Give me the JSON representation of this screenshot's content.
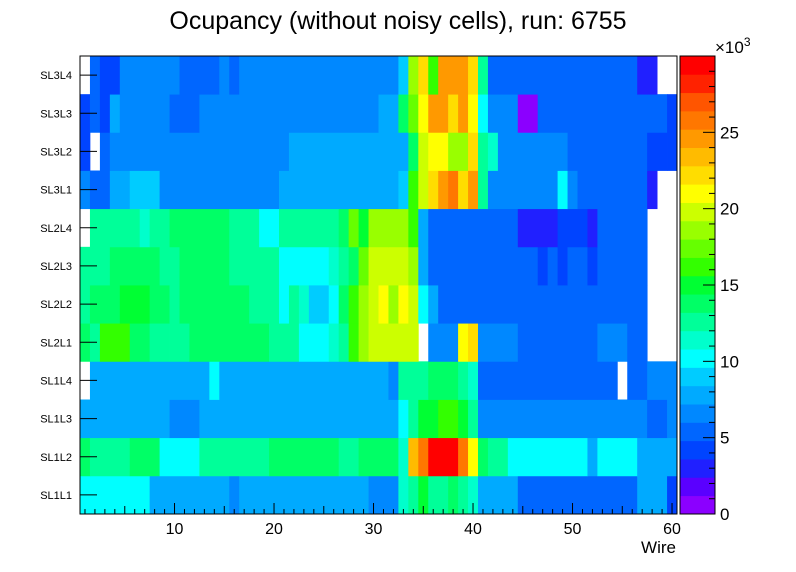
{
  "chart_data": {
    "type": "heatmap",
    "title": "Ocupancy (without noisy cells), run: 6755",
    "xlabel": "Wire",
    "ylabel": "",
    "xlim": [
      0.5,
      60.5
    ],
    "x_ticks": [
      10,
      20,
      30,
      40,
      50,
      60
    ],
    "y_categories": [
      "SL1L1",
      "SL1L2",
      "SL1L3",
      "SL1L4",
      "SL2L1",
      "SL2L2",
      "SL2L3",
      "SL2L4",
      "SL3L1",
      "SL3L2",
      "SL3L3",
      "SL3L4"
    ],
    "z_range": [
      0,
      30
    ],
    "z_exponent_label": "×10",
    "z_exponent": "3",
    "z_ticks": [
      0,
      5,
      10,
      15,
      20,
      25
    ],
    "palette": [
      "#8b00ff",
      "#5a00ff",
      "#2020ff",
      "#0044ff",
      "#0066ff",
      "#0088ff",
      "#00aaff",
      "#00ccff",
      "#00ffff",
      "#00ffcc",
      "#00ff99",
      "#00ff66",
      "#00ff33",
      "#33ff00",
      "#66ff00",
      "#99ff00",
      "#ccff00",
      "#ffff00",
      "#ffdd00",
      "#ffbb00",
      "#ff9900",
      "#ff7700",
      "#ff5500",
      "#ff2200",
      "#ff0000"
    ],
    "rows": {
      "SL1L1": [
        [
          1,
          7,
          10.5
        ],
        [
          8,
          15,
          8
        ],
        [
          16,
          16,
          7
        ],
        [
          17,
          29,
          8
        ],
        [
          30,
          32,
          7
        ],
        [
          33,
          33,
          11
        ],
        [
          34,
          34,
          13
        ],
        [
          35,
          35,
          15
        ],
        [
          36,
          37,
          13
        ],
        [
          38,
          38,
          14
        ],
        [
          39,
          39,
          13
        ],
        [
          40,
          40,
          11
        ],
        [
          41,
          44,
          7.5
        ],
        [
          45,
          56,
          5
        ],
        [
          57,
          59,
          8
        ],
        [
          60,
          60,
          4
        ]
      ],
      "SL1L2": [
        [
          1,
          1,
          14
        ],
        [
          2,
          5,
          12
        ],
        [
          6,
          8,
          14
        ],
        [
          9,
          12,
          10
        ],
        [
          13,
          19,
          12
        ],
        [
          20,
          26,
          14
        ],
        [
          27,
          28,
          12
        ],
        [
          29,
          32,
          13.5
        ],
        [
          33,
          33,
          11
        ],
        [
          34,
          34,
          23
        ],
        [
          35,
          35,
          26
        ],
        [
          36,
          38,
          29
        ],
        [
          39,
          39,
          26
        ],
        [
          40,
          40,
          21
        ],
        [
          41,
          41,
          14
        ],
        [
          42,
          43,
          12
        ],
        [
          44,
          51,
          10
        ],
        [
          52,
          52,
          8
        ],
        [
          53,
          56,
          10
        ],
        [
          57,
          60,
          8
        ]
      ],
      "SL1L3": [
        [
          1,
          9,
          8
        ],
        [
          10,
          12,
          7
        ],
        [
          13,
          32,
          8
        ],
        [
          33,
          33,
          10
        ],
        [
          34,
          34,
          13
        ],
        [
          35,
          36,
          15
        ],
        [
          37,
          38,
          16
        ],
        [
          39,
          39,
          15
        ],
        [
          40,
          40,
          13
        ],
        [
          41,
          52,
          7
        ],
        [
          53,
          54,
          6
        ],
        [
          55,
          57,
          7
        ],
        [
          58,
          59,
          5
        ],
        [
          60,
          60,
          7
        ]
      ],
      "SL1L4": [
        [
          1,
          1,
          0
        ],
        [
          2,
          13,
          8
        ],
        [
          14,
          14,
          10
        ],
        [
          15,
          31,
          8
        ],
        [
          32,
          32,
          7
        ],
        [
          33,
          35,
          12
        ],
        [
          36,
          38,
          14
        ],
        [
          39,
          39,
          12
        ],
        [
          40,
          40,
          11
        ],
        [
          41,
          54,
          5
        ],
        [
          55,
          55,
          0
        ],
        [
          56,
          57,
          5
        ],
        [
          58,
          60,
          7
        ]
      ],
      "SL2L1": [
        [
          1,
          1,
          14
        ],
        [
          2,
          2,
          13
        ],
        [
          3,
          5,
          16
        ],
        [
          6,
          7,
          14
        ],
        [
          8,
          9,
          12
        ],
        [
          10,
          11,
          13
        ],
        [
          12,
          19,
          14
        ],
        [
          20,
          22,
          12
        ],
        [
          23,
          25,
          10
        ],
        [
          26,
          26,
          11
        ],
        [
          27,
          27,
          13
        ],
        [
          28,
          28,
          16
        ],
        [
          29,
          29,
          18
        ],
        [
          30,
          34,
          20
        ],
        [
          35,
          35,
          0
        ],
        [
          36,
          36,
          7
        ],
        [
          37,
          38,
          6
        ],
        [
          39,
          39,
          21
        ],
        [
          40,
          40,
          22
        ],
        [
          41,
          44,
          7
        ],
        [
          45,
          52,
          5
        ],
        [
          53,
          55,
          7
        ],
        [
          56,
          57,
          5
        ],
        [
          58,
          60,
          0
        ]
      ],
      "SL2L2": [
        [
          1,
          1,
          12
        ],
        [
          2,
          2,
          14
        ],
        [
          3,
          4,
          14
        ],
        [
          5,
          7,
          15
        ],
        [
          8,
          9,
          14
        ],
        [
          10,
          10,
          13
        ],
        [
          11,
          17,
          14
        ],
        [
          18,
          20,
          12
        ],
        [
          21,
          21,
          10
        ],
        [
          22,
          22,
          12
        ],
        [
          23,
          23,
          11
        ],
        [
          24,
          25,
          9
        ],
        [
          26,
          26,
          10
        ],
        [
          27,
          27,
          14
        ],
        [
          28,
          28,
          16
        ],
        [
          29,
          29,
          19
        ],
        [
          30,
          30,
          20
        ],
        [
          31,
          31,
          21
        ],
        [
          32,
          32,
          19
        ],
        [
          33,
          33,
          21
        ],
        [
          34,
          34,
          20
        ],
        [
          35,
          35,
          10
        ],
        [
          36,
          36,
          8
        ],
        [
          37,
          45,
          5
        ],
        [
          46,
          54,
          5
        ],
        [
          55,
          57,
          5
        ],
        [
          58,
          60,
          0
        ]
      ],
      "SL2L3": [
        [
          1,
          1,
          12
        ],
        [
          2,
          3,
          13
        ],
        [
          4,
          6,
          14
        ],
        [
          7,
          8,
          14
        ],
        [
          9,
          10,
          12
        ],
        [
          11,
          15,
          14
        ],
        [
          16,
          20,
          12
        ],
        [
          21,
          21,
          10
        ],
        [
          22,
          25,
          10
        ],
        [
          26,
          26,
          11
        ],
        [
          27,
          27,
          13
        ],
        [
          28,
          28,
          14
        ],
        [
          29,
          29,
          17
        ],
        [
          30,
          32,
          20
        ],
        [
          33,
          33,
          20
        ],
        [
          34,
          34,
          19
        ],
        [
          35,
          35,
          8
        ],
        [
          36,
          46,
          5
        ],
        [
          47,
          47,
          4
        ],
        [
          48,
          48,
          5
        ],
        [
          49,
          49,
          4
        ],
        [
          50,
          51,
          5
        ],
        [
          52,
          52,
          4
        ],
        [
          53,
          57,
          5
        ],
        [
          58,
          60,
          0
        ]
      ],
      "SL2L4": [
        [
          1,
          1,
          0
        ],
        [
          2,
          5,
          13
        ],
        [
          6,
          6,
          12
        ],
        [
          7,
          7,
          11
        ],
        [
          8,
          9,
          12
        ],
        [
          10,
          15,
          14
        ],
        [
          16,
          18,
          12
        ],
        [
          19,
          20,
          10
        ],
        [
          21,
          26,
          12
        ],
        [
          27,
          27,
          14
        ],
        [
          28,
          28,
          17
        ],
        [
          29,
          29,
          15
        ],
        [
          30,
          31,
          19
        ],
        [
          32,
          33,
          18
        ],
        [
          34,
          34,
          16
        ],
        [
          35,
          35,
          8
        ],
        [
          36,
          44,
          5
        ],
        [
          45,
          48,
          3
        ],
        [
          49,
          51,
          4
        ],
        [
          52,
          52,
          3
        ],
        [
          53,
          56,
          5
        ],
        [
          57,
          57,
          5
        ],
        [
          58,
          60,
          0
        ]
      ],
      "SL3L1": [
        [
          1,
          1,
          6
        ],
        [
          2,
          3,
          5
        ],
        [
          4,
          5,
          8
        ],
        [
          6,
          8,
          9
        ],
        [
          9,
          20,
          6
        ],
        [
          21,
          32,
          8
        ],
        [
          33,
          33,
          9
        ],
        [
          34,
          34,
          16
        ],
        [
          35,
          35,
          20
        ],
        [
          36,
          36,
          22
        ],
        [
          37,
          37,
          24
        ],
        [
          38,
          38,
          26
        ],
        [
          39,
          39,
          22
        ],
        [
          40,
          40,
          24
        ],
        [
          41,
          41,
          12
        ],
        [
          42,
          48,
          7
        ],
        [
          49,
          49,
          10
        ],
        [
          50,
          50,
          7
        ],
        [
          51,
          56,
          5
        ],
        [
          57,
          57,
          5
        ],
        [
          58,
          58,
          3
        ],
        [
          59,
          60,
          0
        ]
      ],
      "SL3L2": [
        [
          1,
          1,
          4
        ],
        [
          2,
          2,
          0
        ],
        [
          3,
          3,
          5
        ],
        [
          4,
          4,
          7
        ],
        [
          5,
          21,
          7
        ],
        [
          22,
          33,
          8
        ],
        [
          34,
          34,
          14
        ],
        [
          35,
          35,
          20
        ],
        [
          36,
          37,
          21
        ],
        [
          38,
          39,
          19
        ],
        [
          40,
          40,
          22
        ],
        [
          41,
          41,
          12
        ],
        [
          42,
          42,
          11
        ],
        [
          43,
          49,
          7
        ],
        [
          50,
          57,
          5
        ],
        [
          58,
          59,
          4
        ],
        [
          60,
          60,
          4
        ]
      ],
      "SL3L3": [
        [
          1,
          1,
          4
        ],
        [
          2,
          2,
          5
        ],
        [
          3,
          3,
          4
        ],
        [
          4,
          4,
          8
        ],
        [
          5,
          9,
          7
        ],
        [
          10,
          12,
          5
        ],
        [
          13,
          30,
          7
        ],
        [
          31,
          32,
          8
        ],
        [
          33,
          33,
          14
        ],
        [
          34,
          34,
          17
        ],
        [
          35,
          35,
          21
        ],
        [
          36,
          37,
          25
        ],
        [
          38,
          38,
          22
        ],
        [
          39,
          39,
          25
        ],
        [
          40,
          40,
          21
        ],
        [
          41,
          41,
          10
        ],
        [
          42,
          44,
          7
        ],
        [
          45,
          45,
          1
        ],
        [
          46,
          46,
          1
        ],
        [
          47,
          57,
          5
        ],
        [
          58,
          59,
          5
        ],
        [
          60,
          60,
          4
        ]
      ],
      "SL3L4": [
        [
          1,
          1,
          0
        ],
        [
          2,
          2,
          5
        ],
        [
          3,
          4,
          4
        ],
        [
          5,
          10,
          7
        ],
        [
          11,
          14,
          5
        ],
        [
          15,
          15,
          7
        ],
        [
          16,
          16,
          5
        ],
        [
          17,
          32,
          7
        ],
        [
          33,
          33,
          9
        ],
        [
          34,
          34,
          19
        ],
        [
          35,
          35,
          22
        ],
        [
          36,
          36,
          16
        ],
        [
          37,
          37,
          24
        ],
        [
          38,
          39,
          24
        ],
        [
          40,
          40,
          22
        ],
        [
          41,
          41,
          12
        ],
        [
          42,
          44,
          5
        ],
        [
          45,
          56,
          5
        ],
        [
          57,
          58,
          3
        ],
        [
          59,
          60,
          0
        ]
      ]
    }
  }
}
